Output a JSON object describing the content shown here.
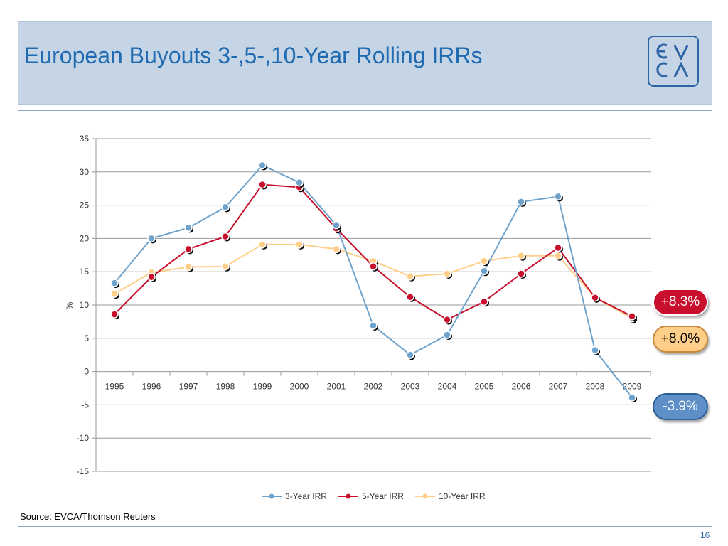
{
  "slide": {
    "title": "European Buyouts 3-,5-,10-Year Rolling IRRs",
    "logo_text": "EVCA",
    "source": "Source: EVCA/Thomson Reuters",
    "page_number": "16"
  },
  "badges": {
    "five_year": "+8.3%",
    "ten_year": "+8.0%",
    "three_year": "-3.9%"
  },
  "colors": {
    "header_bg": "#c5d5e6",
    "title": "#1f6ab1",
    "three_year": "#6fa3cc",
    "five_year": "#c8102e",
    "ten_year": "#ffcf8a"
  },
  "chart_data": {
    "type": "line",
    "categories": [
      "1995",
      "1996",
      "1997",
      "1998",
      "1999",
      "2000",
      "2001",
      "2002",
      "2003",
      "2004",
      "2005",
      "2006",
      "2007",
      "2008",
      "2009"
    ],
    "series": [
      {
        "name": "3-Year IRR",
        "color": "#6fa3cc",
        "values": [
          13.3,
          20.0,
          21.6,
          24.7,
          31.0,
          28.4,
          22.0,
          6.9,
          2.5,
          5.5,
          15.1,
          25.5,
          26.3,
          3.2,
          -3.9
        ]
      },
      {
        "name": "5-Year IRR",
        "color": "#c8102e",
        "values": [
          8.6,
          14.2,
          18.4,
          20.3,
          28.1,
          27.7,
          21.5,
          15.8,
          11.2,
          7.8,
          10.5,
          14.7,
          18.6,
          11.1,
          8.3
        ]
      },
      {
        "name": "10-Year IRR",
        "color": "#ffcf8a",
        "values": [
          11.7,
          14.9,
          15.7,
          15.8,
          19.1,
          19.1,
          18.4,
          16.6,
          14.3,
          14.7,
          16.6,
          17.4,
          17.4,
          11.1,
          8.0
        ]
      }
    ],
    "ylabel": "%",
    "xlabel": "",
    "ylim": [
      -15,
      35
    ],
    "yticks": [
      35,
      30,
      25,
      20,
      15,
      10,
      5,
      0,
      -5,
      -10,
      -15
    ],
    "grid": true,
    "legend": "bottom"
  }
}
